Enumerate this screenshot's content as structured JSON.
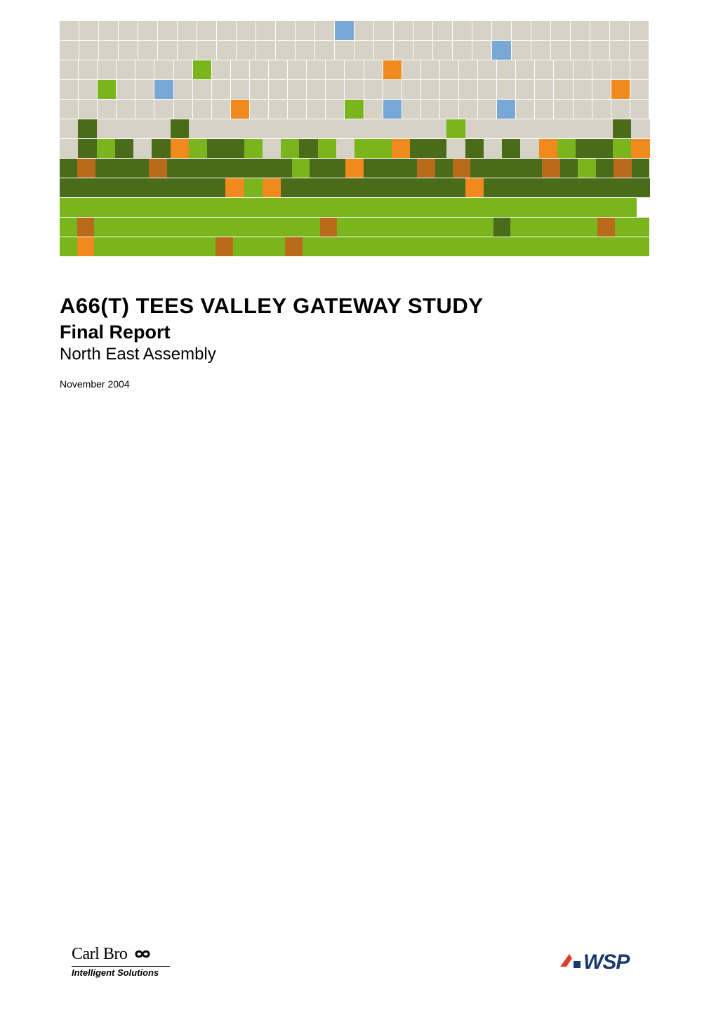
{
  "colors": {
    "g": "#d7d2c6",
    "b": "#7aa8d6",
    "l": "#7ab51d",
    "d": "#4a6b1a",
    "o": "#f08a1d",
    "r": "#b86b1a",
    "w": "#ffffff"
  },
  "grid": {
    "rows": [
      "ggggggggggggggbggggggggggggggg",
      "ggggggggggggggggggggggbggggggg",
      "ggggggglgggggggggoggggggggggggg",
      "gglggbgggggggggggggggggggggggog",
      "gggggggggoggggglgbgggggbggggggg",
      "gdggggdgggggggggggggglggggggggdg",
      "gdldgdolddlgldlglloddgdgdgolddlo",
      "drdddrdddddddlddodddrdrddddrdldrd",
      "dddddddddoloddddddddddoddddddddd",
      "lllllllllllllllllllllllllllllll",
      "lrlllllllllllllrllllllllldlllllrll",
      "lolllllllrlllrllllllllllllllllllll"
    ],
    "cell_size": 27,
    "gap": 1
  },
  "title": "A66(T) TEES VALLEY GATEWAY STUDY",
  "subtitle": "Final Report",
  "client": "North East Assembly",
  "date": "November 2004",
  "logo_left": {
    "name": "Carl Bro",
    "tagline": "Intelligent Solutions"
  },
  "logo_right": {
    "name": "WSP",
    "accent_color": "#e03a2a",
    "text_color": "#1a3a6e"
  }
}
